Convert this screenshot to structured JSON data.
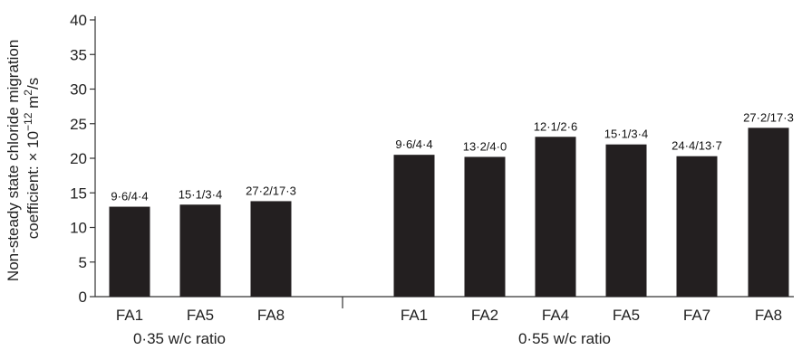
{
  "chart_data": {
    "type": "bar",
    "ylabel_line1": "Non-steady state chloride migration",
    "ylabel_line2_prefix": "coefficient: × 10",
    "ylabel_line2_exp": "−12",
    "ylabel_line2_mid": " m",
    "ylabel_line2_exp2": "2",
    "ylabel_line2_suffix": "/s",
    "ylim": [
      0,
      40
    ],
    "yticks": [
      0,
      5,
      10,
      15,
      20,
      25,
      30,
      35,
      40
    ],
    "grid": false,
    "colors": {
      "bar": "#231f20"
    },
    "groups": [
      {
        "name": "0·35 w/c ratio",
        "categories": [
          "FA1",
          "FA5",
          "FA8"
        ],
        "values": [
          13.0,
          13.3,
          13.8
        ],
        "data_labels": [
          "9·6/4·4",
          "15·1/3·4",
          "27·2/17·3"
        ]
      },
      {
        "name": "0·55 w/c ratio",
        "categories": [
          "FA1",
          "FA2",
          "FA4",
          "FA5",
          "FA7",
          "FA8"
        ],
        "values": [
          20.5,
          20.2,
          23.1,
          22.0,
          20.3,
          24.4
        ],
        "data_labels": [
          "9·6/4·4",
          "13·2/4·0",
          "12·1/2·6",
          "15·1/3·4",
          "24·4/13·7",
          "27·2/17·3"
        ]
      }
    ]
  }
}
